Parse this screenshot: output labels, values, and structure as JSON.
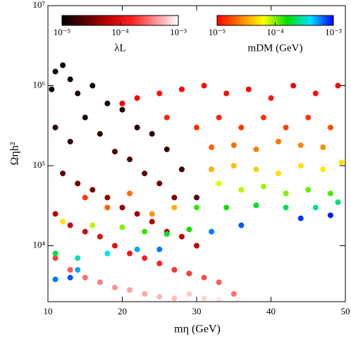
{
  "chart_data": {
    "type": "scatter",
    "x_label": "mη (GeV)",
    "y_label": "Ωηh²",
    "xlim": [
      10,
      50
    ],
    "xticks": [
      10,
      20,
      30,
      40,
      50
    ],
    "ylim": [
      2000,
      10000000
    ],
    "y_scale": "log",
    "yticks": [
      {
        "value": 10000,
        "label": "10⁴"
      },
      {
        "value": 100000,
        "label": "10⁵"
      },
      {
        "value": 1000000,
        "label": "10⁶"
      },
      {
        "value": 10000000,
        "label": "10⁷"
      }
    ],
    "clim": [
      1e-05,
      0.001
    ],
    "cticks": [
      {
        "value": 1e-05,
        "label": "10⁻⁵"
      },
      {
        "value": 0.0001,
        "label": "10⁻⁴"
      },
      {
        "value": 0.001,
        "label": "10⁻³"
      }
    ],
    "series": [
      {
        "name": "λL",
        "colormap": [
          "#000000",
          "#5a0000",
          "#c00000",
          "#ff2020",
          "#ff9090",
          "#ffffff"
        ],
        "x": [
          11,
          12,
          10.5,
          13,
          14,
          16,
          18,
          20,
          22,
          24,
          26,
          28,
          30,
          11,
          13,
          15,
          17,
          19,
          21,
          23,
          25,
          27,
          12,
          14,
          16,
          18,
          20,
          22,
          24,
          26,
          28,
          30,
          11,
          13,
          15,
          17,
          19,
          21,
          23,
          25,
          27,
          29,
          31,
          33,
          35,
          11,
          13,
          15,
          17,
          19,
          21,
          23,
          25,
          27,
          29,
          31,
          33,
          35.5
        ],
        "values": [
          1500000,
          1800000,
          900000,
          1200000,
          800000,
          1000000,
          600000,
          500000,
          300000,
          250000,
          160000,
          90000,
          40000,
          300000,
          200000,
          400000,
          250000,
          150000,
          120000,
          80000,
          60000,
          40000,
          80000,
          60000,
          50000,
          40000,
          30000,
          25000,
          20000,
          15000,
          13000,
          10000,
          25000,
          18000,
          15000,
          13000,
          10000,
          8000,
          7000,
          6000,
          5000,
          4500,
          4000,
          3500,
          2500,
          7000,
          5000,
          4000,
          3500,
          3000,
          2800,
          2500,
          2300,
          2200,
          2500,
          2200,
          2100,
          2100
        ],
        "c": [
          1e-05,
          1e-05,
          1.1e-05,
          1e-05,
          1.2e-05,
          1.1e-05,
          1.3e-05,
          1.3e-05,
          1.5e-05,
          1.6e-05,
          1.8e-05,
          2e-05,
          2.5e-05,
          1.4e-05,
          1.6e-05,
          1.3e-05,
          1.6e-05,
          2e-05,
          2.2e-05,
          2.6e-05,
          3e-05,
          3.5e-05,
          2.8e-05,
          3e-05,
          3.5e-05,
          4e-05,
          4.5e-05,
          5e-05,
          5.5e-05,
          6e-05,
          6.5e-05,
          7e-05,
          6e-05,
          7e-05,
          8e-05,
          9e-05,
          0.0001,
          0.00012,
          0.00014,
          0.00016,
          0.00018,
          0.0002,
          0.00023,
          0.00026,
          0.0003,
          0.0002,
          0.00025,
          0.0003,
          0.00035,
          0.0004,
          0.00045,
          0.0005,
          0.00055,
          0.0006,
          0.00065,
          0.0007,
          0.0008,
          0.0009
        ]
      },
      {
        "name": "mDM (GeV)",
        "colormap": [
          "#ff0000",
          "#ff8000",
          "#ffff00",
          "#00e000",
          "#00e0ff",
          "#0000ff"
        ],
        "x": [
          20,
          22,
          25,
          28,
          31,
          34,
          37,
          40,
          43,
          46,
          49,
          26,
          30,
          33,
          36,
          39,
          42,
          45,
          48,
          32,
          35,
          38,
          41,
          44,
          47,
          32,
          35,
          38,
          41,
          44,
          47,
          49.5,
          33,
          36,
          39,
          42,
          45,
          48,
          30,
          34,
          38,
          42,
          46,
          49,
          15,
          18,
          21,
          24,
          27,
          12,
          16,
          20,
          23,
          26,
          29,
          11,
          14,
          18,
          22,
          25,
          14,
          13,
          11,
          32,
          36,
          44,
          48
        ],
        "values": [
          600000,
          700000,
          800000,
          900000,
          1000000,
          800000,
          900000,
          700000,
          1000000,
          800000,
          1000000,
          400000,
          300000,
          400000,
          300000,
          400000,
          300000,
          400000,
          300000,
          170000,
          180000,
          160000,
          200000,
          180000,
          170000,
          90000,
          100000,
          90000,
          80000,
          100000,
          90000,
          110000,
          60000,
          50000,
          55000,
          45000,
          50000,
          45000,
          30000,
          30000,
          32000,
          30000,
          30000,
          35000,
          40000,
          30000,
          45000,
          25000,
          30000,
          20000,
          18000,
          17000,
          15000,
          14000,
          16000,
          8000,
          7000,
          8000,
          9000,
          9000,
          5000,
          4000,
          3800,
          15000,
          18000,
          22000,
          24000
        ],
        "c": [
          1e-05,
          1e-05,
          1.1e-05,
          1e-05,
          1e-05,
          1.1e-05,
          1e-05,
          1.2e-05,
          1e-05,
          1.1e-05,
          1e-05,
          1.3e-05,
          1.4e-05,
          1.3e-05,
          1.5e-05,
          1.4e-05,
          1.6e-05,
          1.5e-05,
          1.7e-05,
          2e-05,
          2.2e-05,
          2.5e-05,
          2.3e-05,
          2.6e-05,
          2.8e-05,
          3.5e-05,
          4e-05,
          4.5e-05,
          5e-05,
          5e-05,
          5.5e-05,
          5e-05,
          7e-05,
          8e-05,
          9e-05,
          0.0001,
          0.00011,
          0.00012,
          0.00013,
          0.00015,
          0.00018,
          0.00022,
          0.00026,
          0.00024,
          1.5e-05,
          2e-05,
          2.2e-05,
          3e-05,
          3.5e-05,
          5e-05,
          8e-05,
          0.0001,
          0.00013,
          0.00018,
          0.00015,
          0.0002,
          0.0003,
          0.0004,
          0.0005,
          0.0006,
          0.0005,
          0.0007,
          0.0006,
          0.0006,
          0.0007,
          0.0008,
          0.0009
        ]
      }
    ]
  }
}
